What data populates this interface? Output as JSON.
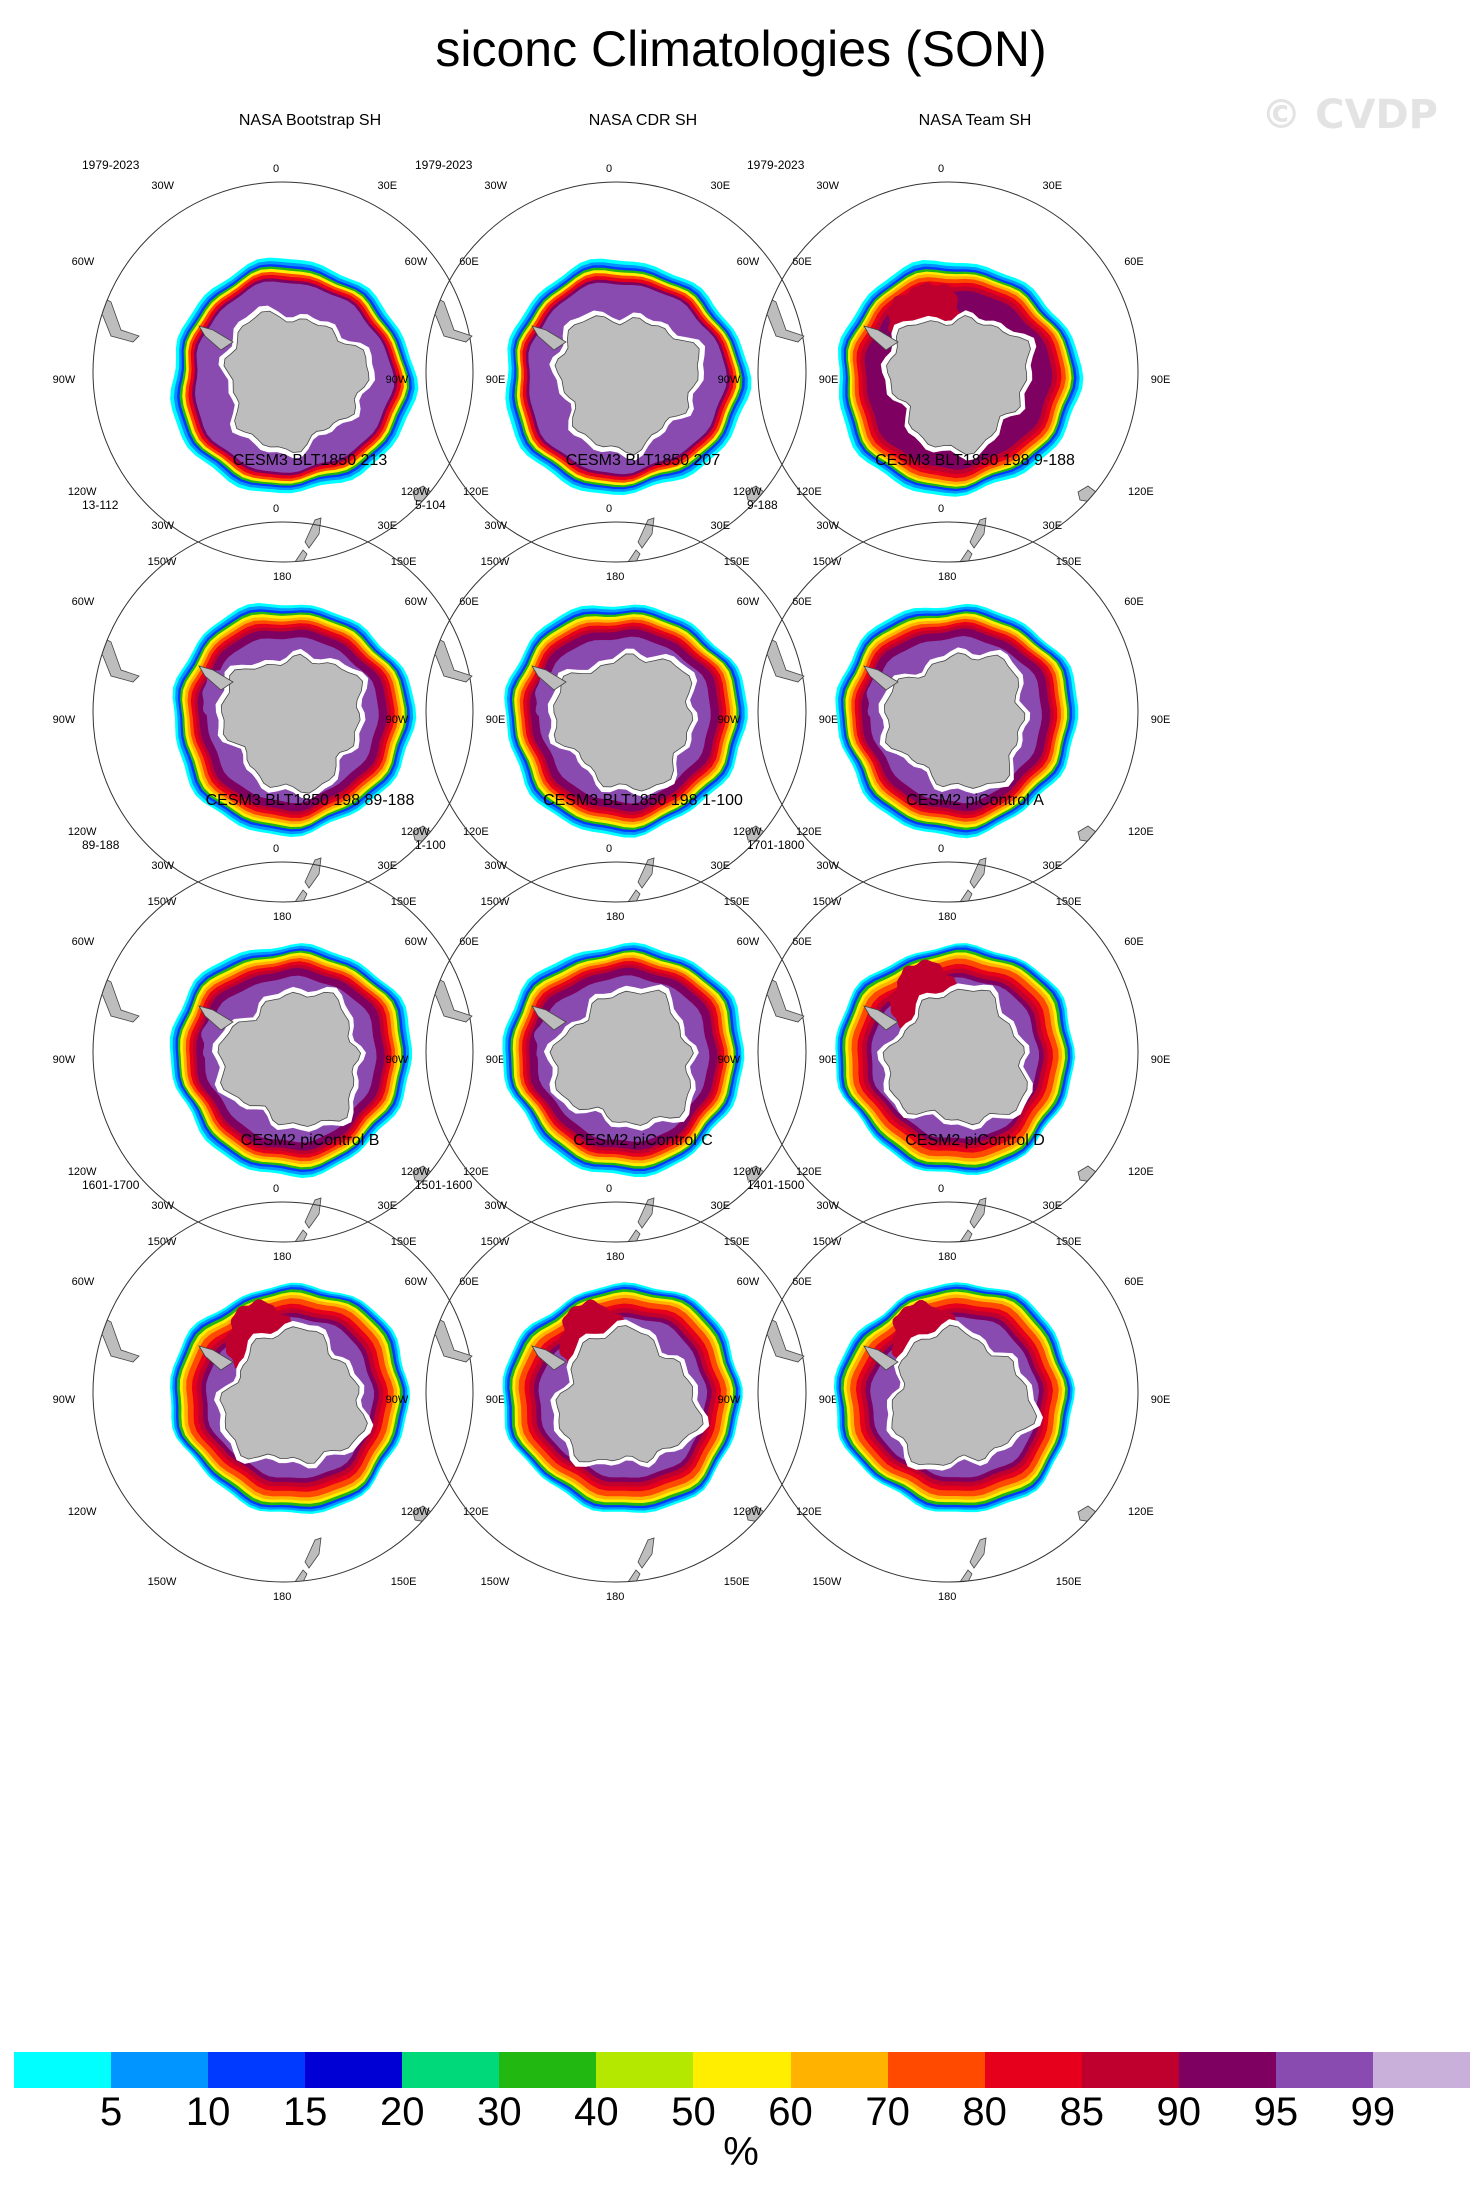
{
  "title": "siconc Climatologies (SON)",
  "watermark": "© CVDP",
  "lon_labels": {
    "n": "0",
    "nne": "30E",
    "ene": "60E",
    "e": "90E",
    "ese": "120E",
    "sse": "150E",
    "s": "180",
    "ssw": "150W",
    "wsw": "120W",
    "w": "90W",
    "wnw": "60W",
    "nnw": "30W"
  },
  "panels": [
    {
      "title": "NASA Bootstrap SH",
      "period": "1979-2023",
      "style": "obs-a"
    },
    {
      "title": "NASA CDR SH",
      "period": "1979-2023",
      "style": "obs-a"
    },
    {
      "title": "NASA Team SH",
      "period": "1979-2023",
      "style": "obs-b"
    },
    {
      "title": "CESM3 BLT1850 213",
      "period": "13-112",
      "style": "cesm3"
    },
    {
      "title": "CESM3 BLT1850 207",
      "period": "5-104",
      "style": "cesm3"
    },
    {
      "title": "CESM3 BLT1850 198 9-188",
      "period": "9-188",
      "style": "cesm3"
    },
    {
      "title": "CESM3 BLT1850 198 89-188",
      "period": "89-188",
      "style": "cesm3"
    },
    {
      "title": "CESM3 BLT1850 198 1-100",
      "period": "1-100",
      "style": "cesm3"
    },
    {
      "title": "CESM2 piControl A",
      "period": "1701-1800",
      "style": "cesm2"
    },
    {
      "title": "CESM2 piControl B",
      "period": "1601-1700",
      "style": "cesm2"
    },
    {
      "title": "CESM2 piControl C",
      "period": "1501-1600",
      "style": "cesm2"
    },
    {
      "title": "CESM2 piControl D",
      "period": "1401-1500",
      "style": "cesm2"
    }
  ],
  "colorbar": {
    "colors": [
      "#00ffff",
      "#0095ff",
      "#0039ff",
      "#0000d4",
      "#00d97a",
      "#22b812",
      "#b5e800",
      "#ffee00",
      "#ffb300",
      "#ff4a00",
      "#e6001b",
      "#bf002e",
      "#7e0060",
      "#8a4bb0",
      "#c9b0db"
    ],
    "tick_labels": [
      "5",
      "10",
      "15",
      "20",
      "30",
      "40",
      "50",
      "60",
      "70",
      "80",
      "85",
      "90",
      "95",
      "99"
    ],
    "units": "%"
  }
}
